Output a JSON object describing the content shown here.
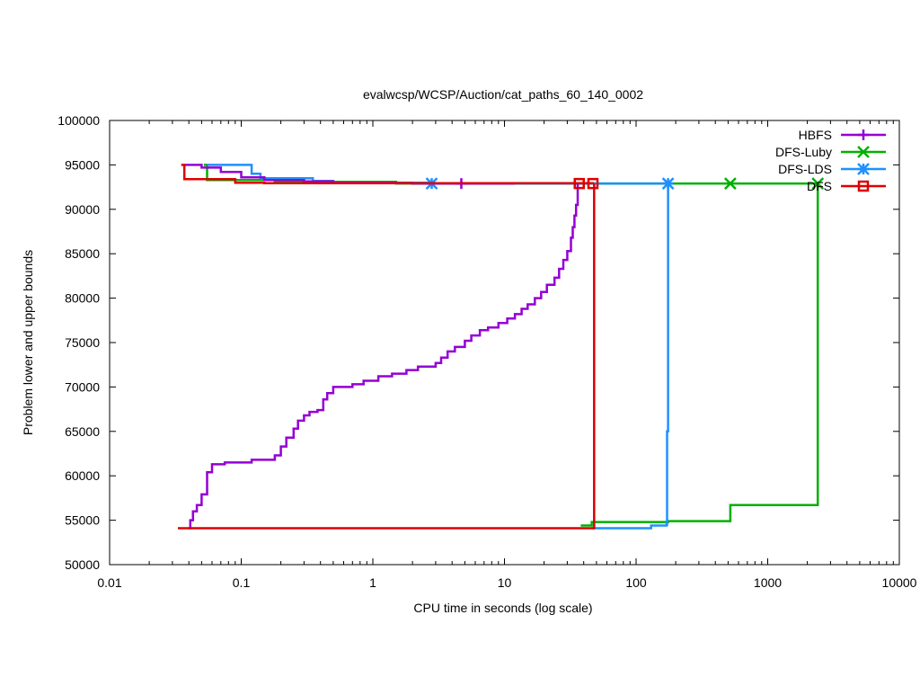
{
  "chart_data": {
    "type": "line",
    "title": "evalwcsp/WCSP/Auction/cat_paths_60_140_0002",
    "xlabel": "CPU time in seconds (log scale)",
    "ylabel": "Problem lower and upper bounds",
    "x_scale": "log",
    "xlim": [
      0.01,
      10000
    ],
    "ylim": [
      50000,
      100000
    ],
    "x_ticks": [
      0.01,
      0.1,
      1,
      10,
      100,
      1000,
      10000
    ],
    "x_tick_labels": [
      "0.01",
      "0.1",
      "1",
      "10",
      "100",
      "1000",
      "10000"
    ],
    "y_ticks": [
      50000,
      55000,
      60000,
      65000,
      70000,
      75000,
      80000,
      85000,
      90000,
      95000,
      100000
    ],
    "y_tick_labels": [
      "50000",
      "55000",
      "60000",
      "65000",
      "70000",
      "75000",
      "80000",
      "85000",
      "90000",
      "95000",
      "100000"
    ],
    "grid": false,
    "legend_position": "top-right",
    "series": [
      {
        "name": "HBFS",
        "color": "#9400d3",
        "marker": "plus",
        "marker_points": [
          [
            4.7,
            92900
          ]
        ],
        "upper": [
          [
            0.037,
            95000
          ],
          [
            0.05,
            94700
          ],
          [
            0.07,
            94200
          ],
          [
            0.1,
            93600
          ],
          [
            0.15,
            93300
          ],
          [
            0.3,
            93150
          ],
          [
            0.5,
            93000
          ],
          [
            2.0,
            92900
          ],
          [
            4.7,
            92900
          ],
          [
            12,
            92900
          ]
        ],
        "lower": [
          [
            0.04,
            54100
          ],
          [
            0.041,
            55000
          ],
          [
            0.043,
            56000
          ],
          [
            0.046,
            56700
          ],
          [
            0.05,
            57900
          ],
          [
            0.055,
            60400
          ],
          [
            0.06,
            61300
          ],
          [
            0.075,
            61500
          ],
          [
            0.12,
            61800
          ],
          [
            0.18,
            62300
          ],
          [
            0.2,
            63300
          ],
          [
            0.22,
            64300
          ],
          [
            0.25,
            65300
          ],
          [
            0.27,
            66200
          ],
          [
            0.3,
            66800
          ],
          [
            0.33,
            67200
          ],
          [
            0.38,
            67400
          ],
          [
            0.42,
            68600
          ],
          [
            0.45,
            69300
          ],
          [
            0.5,
            70000
          ],
          [
            0.7,
            70300
          ],
          [
            0.85,
            70700
          ],
          [
            1.1,
            71200
          ],
          [
            1.4,
            71500
          ],
          [
            1.8,
            71900
          ],
          [
            2.2,
            72300
          ],
          [
            3.0,
            72700
          ],
          [
            3.3,
            73300
          ],
          [
            3.7,
            74000
          ],
          [
            4.2,
            74500
          ],
          [
            5.0,
            75200
          ],
          [
            5.6,
            75800
          ],
          [
            6.5,
            76400
          ],
          [
            7.5,
            76700
          ],
          [
            9.0,
            77200
          ],
          [
            10.5,
            77700
          ],
          [
            12,
            78200
          ],
          [
            13.5,
            78800
          ],
          [
            15,
            79300
          ],
          [
            17,
            80000
          ],
          [
            19,
            80700
          ],
          [
            21,
            81500
          ],
          [
            24,
            82300
          ],
          [
            26,
            83300
          ],
          [
            28,
            84300
          ],
          [
            30,
            85300
          ],
          [
            32,
            86800
          ],
          [
            33,
            88000
          ],
          [
            34,
            89300
          ],
          [
            35,
            90500
          ],
          [
            36,
            92900
          ]
        ]
      },
      {
        "name": "DFS-Luby",
        "color": "#00b000",
        "marker": "x",
        "marker_points": [
          [
            520,
            92900
          ],
          [
            2400,
            92900
          ]
        ],
        "upper": [
          [
            0.052,
            95000
          ],
          [
            0.055,
            93300
          ],
          [
            0.18,
            93100
          ],
          [
            1.5,
            92900
          ],
          [
            2400,
            92900
          ]
        ],
        "lower": [
          [
            38,
            54400
          ],
          [
            46,
            54800
          ],
          [
            175,
            54900
          ],
          [
            520,
            56700
          ],
          [
            2400,
            56700
          ],
          [
            2400,
            92900
          ]
        ]
      },
      {
        "name": "DFS-LDS",
        "color": "#1e90ff",
        "marker": "star",
        "marker_points": [
          [
            2.8,
            92900
          ],
          [
            175,
            92900
          ]
        ],
        "upper": [
          [
            0.055,
            95000
          ],
          [
            0.12,
            94000
          ],
          [
            0.14,
            93500
          ],
          [
            0.35,
            93200
          ],
          [
            0.5,
            93000
          ],
          [
            2.8,
            92900
          ],
          [
            175,
            92900
          ]
        ],
        "lower": [
          [
            46,
            54100
          ],
          [
            130,
            54400
          ],
          [
            170,
            54500
          ],
          [
            172,
            65000
          ],
          [
            175,
            92900
          ]
        ]
      },
      {
        "name": "DFS",
        "color": "#dd0000",
        "marker": "square",
        "marker_points": [
          [
            37,
            92900
          ],
          [
            47,
            92900
          ]
        ],
        "upper": [
          [
            0.035,
            95000
          ],
          [
            0.037,
            93400
          ],
          [
            0.09,
            93000
          ],
          [
            0.15,
            92950
          ],
          [
            47,
            92900
          ]
        ],
        "lower": [
          [
            0.033,
            54100
          ],
          [
            47,
            54100
          ],
          [
            48,
            92900
          ]
        ]
      }
    ]
  }
}
